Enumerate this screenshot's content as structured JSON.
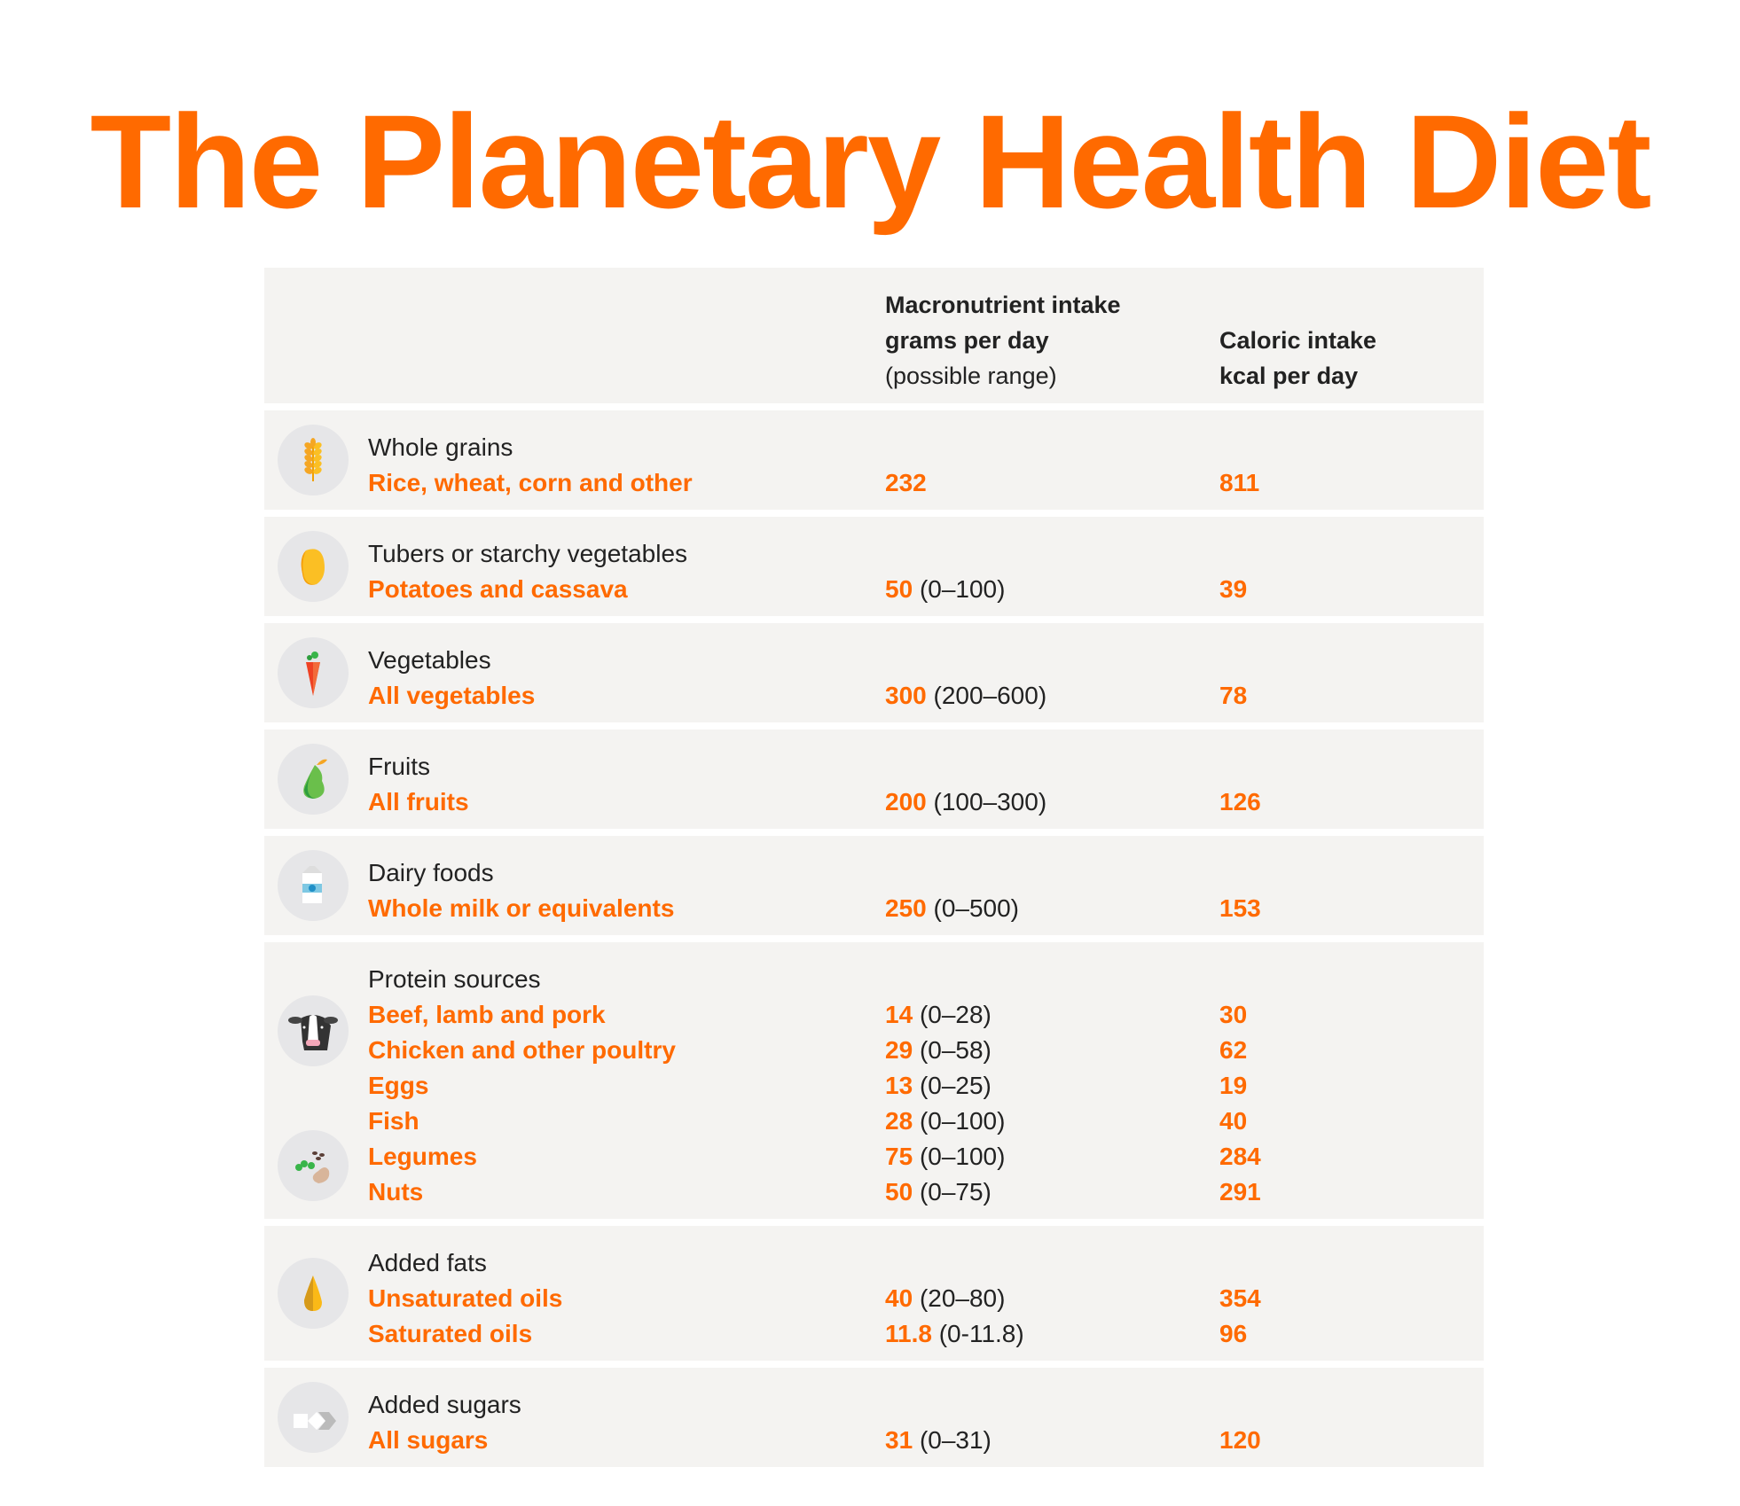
{
  "title": "The Planetary Health Diet",
  "header": {
    "macro_line1": "Macronutrient intake",
    "macro_line2": "grams per day",
    "macro_line3": "(possible range)",
    "cal_line1": "Caloric intake",
    "cal_line2": "kcal per day"
  },
  "rows": [
    {
      "category": "Whole grains",
      "icon": "wheat-icon",
      "items": [
        {
          "name": "Rice, wheat, corn and other",
          "grams": "232",
          "range": "",
          "kcal": "811"
        }
      ]
    },
    {
      "category": "Tubers or starchy vegetables",
      "icon": "potato-icon",
      "items": [
        {
          "name": "Potatoes and cassava",
          "grams": "50",
          "range": "(0–100)",
          "kcal": "39"
        }
      ]
    },
    {
      "category": "Vegetables",
      "icon": "carrot-icon",
      "items": [
        {
          "name": "All vegetables",
          "grams": "300",
          "range": "(200–600)",
          "kcal": "78"
        }
      ]
    },
    {
      "category": "Fruits",
      "icon": "pear-icon",
      "items": [
        {
          "name": "All fruits",
          "grams": "200",
          "range": "(100–300)",
          "kcal": "126"
        }
      ]
    },
    {
      "category": "Dairy foods",
      "icon": "milk-carton-icon",
      "items": [
        {
          "name": "Whole milk or equivalents",
          "grams": "250",
          "range": "(0–500)",
          "kcal": "153"
        }
      ]
    },
    {
      "category": "Protein sources",
      "icon": "cow-icon",
      "icon2": "legumes-icon",
      "items": [
        {
          "name": "Beef, lamb and pork",
          "grams": "14",
          "range": "(0–28)",
          "kcal": "30"
        },
        {
          "name": "Chicken and other poultry",
          "grams": "29",
          "range": "(0–58)",
          "kcal": "62"
        },
        {
          "name": "Eggs",
          "grams": "13",
          "range": "(0–25)",
          "kcal": "19"
        },
        {
          "name": "Fish",
          "grams": "28",
          "range": "(0–100)",
          "kcal": "40"
        },
        {
          "name": "Legumes",
          "grams": "75",
          "range": "(0–100)",
          "kcal": "284"
        },
        {
          "name": "Nuts",
          "grams": "50",
          "range": "(0–75)",
          "kcal": "291"
        }
      ]
    },
    {
      "category": "Added fats",
      "icon": "oil-drop-icon",
      "items": [
        {
          "name": "Unsaturated oils",
          "grams": "40",
          "range": "(20–80)",
          "kcal": "354"
        },
        {
          "name": "Saturated oils",
          "grams": "11.8",
          "range": "(0-11.8)",
          "kcal": "96"
        }
      ]
    },
    {
      "category": "Added sugars",
      "icon": "sugar-cubes-icon",
      "items": [
        {
          "name": "All sugars",
          "grams": "31",
          "range": "(0–31)",
          "kcal": "120"
        }
      ]
    }
  ],
  "colors": {
    "accent": "#ff6a00",
    "row_bg": "#f4f3f1",
    "icon_bg": "#e6e6e8"
  }
}
